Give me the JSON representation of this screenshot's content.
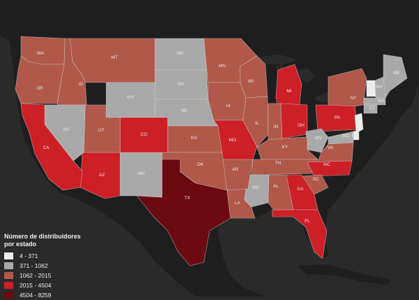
{
  "legend": {
    "title_line1": "Número de distribuidores",
    "title_line2": "por estado",
    "items": [
      {
        "label": "4 - 371",
        "color": "#ececec"
      },
      {
        "label": "371 - 1062",
        "color": "#a9a9a9"
      },
      {
        "label": "1062 - 2015",
        "color": "#b0584a"
      },
      {
        "label": "2015 - 4504",
        "color": "#cc1f26"
      },
      {
        "label": "4504 - 8259",
        "color": "#6b0a11"
      }
    ]
  },
  "colors": {
    "background": "#2a2a2b",
    "land": "#1d1d1e",
    "state_border": "#d6d6d6"
  },
  "states": [
    {
      "code": "WA",
      "bin": 2
    },
    {
      "code": "OR",
      "bin": 2
    },
    {
      "code": "ID",
      "bin": 2
    },
    {
      "code": "MT",
      "bin": 2
    },
    {
      "code": "ND",
      "bin": 1
    },
    {
      "code": "SD",
      "bin": 1
    },
    {
      "code": "WY",
      "bin": 1
    },
    {
      "code": "NE",
      "bin": 1
    },
    {
      "code": "MN",
      "bin": 2
    },
    {
      "code": "WI",
      "bin": 2
    },
    {
      "code": "MI",
      "bin": 3
    },
    {
      "code": "IA",
      "bin": 2
    },
    {
      "code": "IL",
      "bin": 2
    },
    {
      "code": "IN",
      "bin": 2
    },
    {
      "code": "OH",
      "bin": 3
    },
    {
      "code": "PA",
      "bin": 3
    },
    {
      "code": "NY",
      "bin": 2
    },
    {
      "code": "VT",
      "bin": 0
    },
    {
      "code": "NH",
      "bin": 1
    },
    {
      "code": "ME",
      "bin": 1
    },
    {
      "code": "MA",
      "bin": 1
    },
    {
      "code": "CT",
      "bin": 1
    },
    {
      "code": "NJ",
      "bin": 0
    },
    {
      "code": "DE",
      "bin": 0
    },
    {
      "code": "MD",
      "bin": 1
    },
    {
      "code": "WV",
      "bin": 1
    },
    {
      "code": "VA",
      "bin": 2
    },
    {
      "code": "KY",
      "bin": 2
    },
    {
      "code": "TN",
      "bin": 2
    },
    {
      "code": "NC",
      "bin": 3
    },
    {
      "code": "SC",
      "bin": 2
    },
    {
      "code": "GA",
      "bin": 3
    },
    {
      "code": "FL",
      "bin": 3
    },
    {
      "code": "AL",
      "bin": 2
    },
    {
      "code": "MS",
      "bin": 1
    },
    {
      "code": "LA",
      "bin": 2
    },
    {
      "code": "AR",
      "bin": 2
    },
    {
      "code": "MO",
      "bin": 3
    },
    {
      "code": "KS",
      "bin": 2
    },
    {
      "code": "OK",
      "bin": 2
    },
    {
      "code": "TX",
      "bin": 4
    },
    {
      "code": "NM",
      "bin": 1
    },
    {
      "code": "AZ",
      "bin": 3
    },
    {
      "code": "CO",
      "bin": 3
    },
    {
      "code": "UT",
      "bin": 2
    },
    {
      "code": "NV",
      "bin": 1
    },
    {
      "code": "CA",
      "bin": 3
    }
  ]
}
